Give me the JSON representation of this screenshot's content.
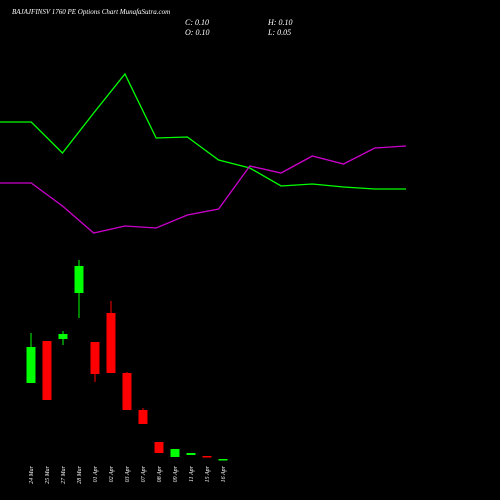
{
  "chart_data": [
    {
      "type": "candlestick",
      "title": "BAJAJFINSV 1760 PE Options Chart MunafaSutra.com",
      "stats": [
        "C: 0.10",
        "H: 0.10",
        "O: 0.10",
        "L: 0.05"
      ],
      "categories": [
        "24 Mar",
        "25 Mar",
        "27 Mar",
        "28 Mar",
        "01 Apr",
        "02 Apr",
        "03 Apr",
        "07 Apr",
        "08 Apr",
        "09 Apr",
        "11 Apr",
        "15 Apr",
        "16 Apr"
      ],
      "open": [
        7.7,
        11.9,
        12.1,
        16.7,
        11.8,
        14.7,
        8.7,
        5.0,
        1.8,
        0.3,
        0.5,
        0.4,
        0.1
      ],
      "high": [
        12.7,
        11.9,
        12.9,
        20.0,
        11.8,
        15.9,
        8.8,
        5.2,
        1.8,
        1.1,
        0.7,
        0.4,
        0.1
      ],
      "low": [
        7.7,
        6.0,
        11.5,
        14.2,
        7.8,
        8.7,
        5.0,
        3.6,
        0.7,
        0.3,
        0.5,
        0.3,
        0.05
      ],
      "close": [
        11.3,
        6.0,
        12.6,
        19.4,
        8.6,
        8.7,
        5.0,
        3.6,
        0.7,
        1.1,
        0.7,
        0.3,
        0.1
      ],
      "up_color": "#00ff00",
      "down_color": "#ff0000",
      "ylim": [
        0,
        20
      ]
    },
    {
      "type": "line",
      "series": [
        {
          "color": "#00ff00",
          "values": [
            128,
            128,
            97,
            137,
            176,
            112,
            113,
            90,
            82,
            64,
            66,
            63,
            61,
            61
          ]
        },
        {
          "color": "#cc00cc",
          "values": [
            67,
            67,
            44,
            17,
            24,
            22,
            35,
            41,
            84,
            77,
            94,
            86,
            102,
            104
          ]
        }
      ],
      "ylim": [
        0,
        200
      ]
    }
  ]
}
